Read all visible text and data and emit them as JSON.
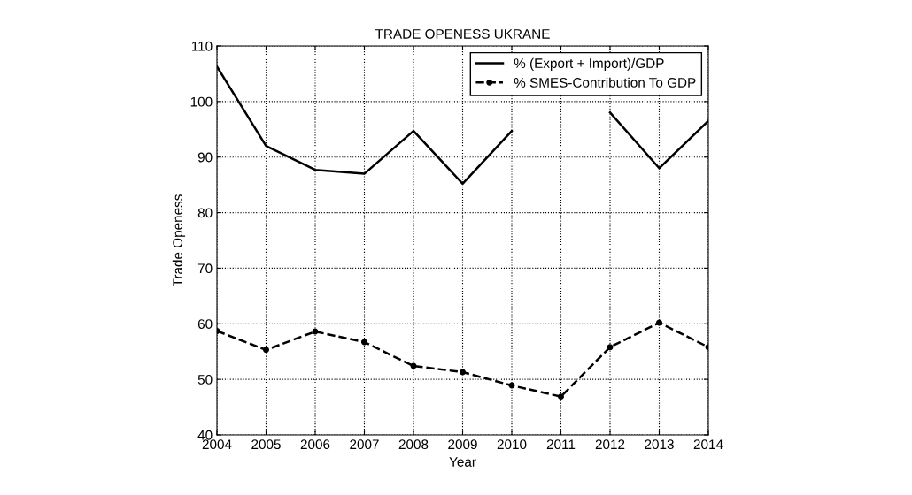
{
  "chart_data": {
    "type": "line",
    "title": "TRADE OPENESS UKRANE",
    "xlabel": "Year",
    "ylabel": "Trade Openess",
    "x": [
      2004,
      2005,
      2006,
      2007,
      2008,
      2009,
      2010,
      2011,
      2012,
      2013,
      2014
    ],
    "series": [
      {
        "name": "% (Export + Import)/GDP",
        "color": "#000000",
        "line_style": "solid",
        "marker": "none",
        "values": [
          106.3,
          92.0,
          87.7,
          87.0,
          94.7,
          85.2,
          94.7,
          null,
          98.0,
          88.0,
          96.5
        ]
      },
      {
        "name": "% SMES-Contribution To GDP",
        "color": "#000000",
        "line_style": "dashed",
        "marker": "circle",
        "values": [
          58.7,
          55.3,
          58.6,
          56.7,
          52.4,
          51.3,
          48.9,
          46.9,
          55.8,
          60.2,
          55.8
        ]
      }
    ],
    "xlim": [
      2004,
      2014
    ],
    "xticks": [
      2004,
      2005,
      2006,
      2007,
      2008,
      2009,
      2010,
      2011,
      2012,
      2013,
      2014
    ],
    "ylim": [
      40,
      110
    ],
    "yticks": [
      40,
      50,
      60,
      70,
      80,
      90,
      100,
      110
    ],
    "grid": true,
    "legend": "top right"
  }
}
